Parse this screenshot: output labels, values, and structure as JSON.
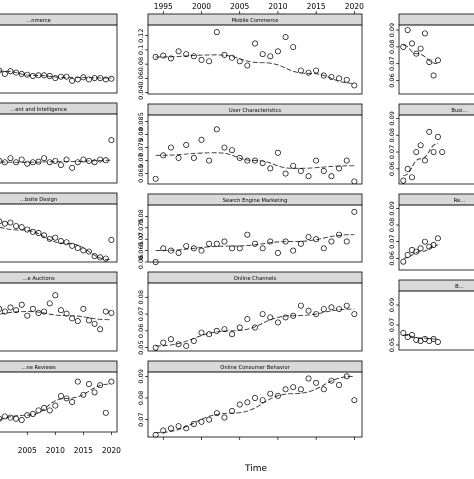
{
  "figure": {
    "xlabel": "Time"
  },
  "chart_data": {
    "type": "scatter",
    "xlabel": "Time",
    "xlim": [
      1993,
      2021
    ],
    "x_ticks": [
      1995,
      2000,
      2005,
      2010,
      2015,
      2020
    ],
    "years": [
      1994,
      1995,
      1996,
      1997,
      1998,
      1999,
      2000,
      2001,
      2002,
      2003,
      2004,
      2005,
      2006,
      2007,
      2008,
      2009,
      2010,
      2011,
      2012,
      2013,
      2014,
      2015,
      2016,
      2017,
      2018,
      2019,
      2020
    ],
    "columns": [
      {
        "panels": [
          {
            "title": "…nmerce",
            "ylim": [
              0,
              1
            ],
            "y_ticks": [],
            "values": [
              0.5,
              0.48,
              0.44,
              0.4,
              0.38,
              0.36,
              0.33,
              0.28,
              0.32,
              0.3,
              0.28,
              0.27,
              0.25,
              0.26,
              0.26,
              0.25,
              0.22,
              0.24,
              0.24,
              0.18,
              0.2,
              0.23,
              0.2,
              0.22,
              0.22,
              0.2,
              0.21
            ],
            "trend": [
              [
                1994,
                0.48
              ],
              [
                2001,
                0.32
              ],
              [
                2006,
                0.26
              ],
              [
                2012,
                0.23
              ],
              [
                2020,
                0.22
              ]
            ]
          },
          {
            "title": "…ent and Intelligence",
            "ylim": [
              0,
              1
            ],
            "y_ticks": [],
            "values": [
              0.3,
              0.32,
              0.3,
              0.32,
              0.28,
              0.3,
              0.32,
              0.3,
              0.36,
              0.3,
              0.34,
              0.28,
              0.3,
              0.31,
              0.36,
              0.3,
              0.32,
              0.26,
              0.34,
              0.22,
              0.3,
              0.34,
              0.32,
              0.3,
              0.34,
              0.33,
              0.62
            ],
            "trend": [
              [
                1994,
                0.32
              ],
              [
                2004,
                0.3
              ],
              [
                2012,
                0.31
              ],
              [
                2020,
                0.33
              ]
            ]
          },
          {
            "title": "…bsite Design",
            "ylim": [
              0,
              1
            ],
            "y_ticks": [],
            "values": [
              0.85,
              0.82,
              0.8,
              0.76,
              0.74,
              0.72,
              0.7,
              0.66,
              0.68,
              0.62,
              0.6,
              0.56,
              0.52,
              0.5,
              0.46,
              0.4,
              0.42,
              0.36,
              0.34,
              0.28,
              0.24,
              0.2,
              0.18,
              0.1,
              0.08,
              0.06,
              0.38
            ],
            "trend": [
              [
                1994,
                0.72
              ],
              [
                2004,
                0.55
              ],
              [
                2012,
                0.32
              ],
              [
                2020,
                0.04
              ]
            ]
          },
          {
            "title": "…e Auctions",
            "ylim": [
              0,
              1
            ],
            "y_ticks": [],
            "values": [
              0.4,
              0.44,
              0.48,
              0.52,
              0.56,
              0.6,
              0.62,
              0.58,
              0.64,
              0.6,
              0.68,
              0.52,
              0.62,
              0.56,
              0.58,
              0.7,
              0.82,
              0.6,
              0.55,
              0.48,
              0.44,
              0.62,
              0.45,
              0.4,
              0.32,
              0.58,
              0.56
            ],
            "trend": [
              [
                1994,
                0.48
              ],
              [
                2005,
                0.58
              ],
              [
                2012,
                0.52
              ],
              [
                2020,
                0.46
              ]
            ]
          },
          {
            "title": "…ne Reviews",
            "ylim": [
              0,
              1
            ],
            "y_ticks": [],
            "values": [
              0.06,
              0.08,
              0.1,
              0.12,
              0.14,
              0.18,
              0.22,
              0.26,
              0.24,
              0.22,
              0.2,
              0.28,
              0.3,
              0.36,
              0.4,
              0.36,
              0.44,
              0.6,
              0.56,
              0.5,
              0.84,
              0.62,
              0.8,
              0.66,
              0.78,
              0.32,
              0.84
            ],
            "trend": [
              [
                1994,
                0.08
              ],
              [
                2005,
                0.28
              ],
              [
                2012,
                0.56
              ],
              [
                2020,
                0.8
              ]
            ]
          }
        ]
      },
      {
        "panels": [
          {
            "title": "Mobile Commerce",
            "ylim": [
              0.038,
              0.135
            ],
            "y_ticks": [
              0.04,
              0.06,
              0.08,
              0.1,
              0.12
            ],
            "values": [
              0.09,
              0.092,
              0.088,
              0.098,
              0.094,
              0.091,
              0.086,
              0.084,
              0.125,
              0.093,
              0.089,
              0.084,
              0.078,
              0.109,
              0.094,
              0.091,
              0.098,
              0.118,
              0.104,
              0.071,
              0.068,
              0.071,
              0.064,
              0.062,
              0.06,
              0.058,
              0.05
            ],
            "trend": [
              [
                1994,
                0.09
              ],
              [
                2002,
                0.093
              ],
              [
                2008,
                0.082
              ],
              [
                2014,
                0.067
              ],
              [
                2020,
                0.053
              ]
            ]
          },
          {
            "title": "User Characteristics",
            "ylim": [
              0.061,
              0.0875
            ],
            "y_ticks": [
              0.065,
              0.07,
              0.075,
              0.08,
              0.085
            ],
            "values": [
              0.063,
              0.072,
              0.075,
              0.071,
              0.076,
              0.071,
              0.078,
              0.07,
              0.082,
              0.075,
              0.074,
              0.071,
              0.07,
              0.07,
              0.069,
              0.067,
              0.073,
              0.065,
              0.068,
              0.066,
              0.064,
              0.07,
              0.066,
              0.064,
              0.067,
              0.07,
              0.062
            ],
            "trend": [
              [
                1994,
                0.072
              ],
              [
                2002,
                0.073
              ],
              [
                2007,
                0.07
              ],
              [
                2012,
                0.067
              ],
              [
                2020,
                0.068
              ]
            ]
          },
          {
            "title": "Search Engine Marketing",
            "ylim": [
              0.06,
              0.085
            ],
            "y_ticks": [
              0.06,
              0.065,
              0.07,
              0.075,
              0.08
            ],
            "values": [
              0.06,
              0.066,
              0.065,
              0.064,
              0.067,
              0.066,
              0.065,
              0.068,
              0.068,
              0.069,
              0.066,
              0.066,
              0.072,
              0.068,
              0.066,
              0.069,
              0.064,
              0.069,
              0.065,
              0.068,
              0.071,
              0.07,
              0.066,
              0.069,
              0.072,
              0.069,
              0.082
            ],
            "trend": [
              [
                1994,
                0.065
              ],
              [
                2004,
                0.067
              ],
              [
                2012,
                0.069
              ],
              [
                2020,
                0.072
              ]
            ]
          },
          {
            "title": "Online Channels",
            "ylim": [
              0.048,
              0.0885
            ],
            "y_ticks": [
              0.05,
              0.06,
              0.07,
              0.08
            ],
            "values": [
              0.05,
              0.053,
              0.055,
              0.052,
              0.051,
              0.054,
              0.059,
              0.058,
              0.06,
              0.061,
              0.058,
              0.062,
              0.067,
              0.062,
              0.07,
              0.068,
              0.065,
              0.068,
              0.069,
              0.075,
              0.072,
              0.07,
              0.073,
              0.074,
              0.073,
              0.075,
              0.07
            ],
            "trend": [
              [
                1994,
                0.051
              ],
              [
                2004,
                0.06
              ],
              [
                2012,
                0.069
              ],
              [
                2020,
                0.073
              ]
            ]
          },
          {
            "title": "Online Consumer Behavior",
            "ylim": [
              0.062,
              0.092
            ],
            "y_ticks": [
              0.07,
              0.08,
              0.09
            ],
            "values": [
              0.063,
              0.065,
              0.066,
              0.067,
              0.066,
              0.068,
              0.069,
              0.07,
              0.073,
              0.071,
              0.074,
              0.077,
              0.078,
              0.08,
              0.079,
              0.082,
              0.081,
              0.084,
              0.085,
              0.084,
              0.089,
              0.087,
              0.084,
              0.088,
              0.086,
              0.09,
              0.079
            ],
            "trend": [
              [
                1994,
                0.064
              ],
              [
                2004,
                0.073
              ],
              [
                2012,
                0.082
              ],
              [
                2020,
                0.09
              ]
            ]
          }
        ]
      },
      {
        "panels": [
          {
            "title": "",
            "ylim": [
              0.052,
              0.093
            ],
            "y_ticks": [
              0.06,
              0.07,
              0.08,
              0.09
            ],
            "values": [
              0.08,
              0.09,
              0.082,
              0.076,
              0.079,
              0.088,
              0.071,
              0.063,
              0.072
            ],
            "trend": [
              [
                1994,
                0.081
              ],
              [
                1997,
                0.076
              ],
              [
                2002,
                0.07
              ]
            ]
          },
          {
            "title": "Busi…",
            "ylim": [
              0.051,
              0.092
            ],
            "y_ticks": [
              0.06,
              0.07,
              0.08,
              0.09
            ],
            "values": [
              0.053,
              0.06,
              0.055,
              0.07,
              0.074,
              0.065,
              0.082,
              0.07,
              0.079,
              0.07
            ],
            "trend": [
              [
                1994,
                0.056
              ],
              [
                1998,
                0.066
              ],
              [
                2002,
                0.075
              ]
            ]
          },
          {
            "title": "Re…",
            "ylim": [
              0.053,
              0.092
            ],
            "y_ticks": [
              0.06,
              0.07,
              0.08,
              0.09
            ],
            "values": [
              0.058,
              0.062,
              0.065,
              0.064,
              0.066,
              0.07,
              0.067,
              0.068,
              0.072
            ],
            "trend": [
              [
                1994,
                0.06
              ],
              [
                1998,
                0.064
              ],
              [
                2002,
                0.068
              ]
            ]
          },
          {
            "title": "B…",
            "ylim": [
              0.045,
              0.104
            ],
            "y_ticks": [
              0.05,
              0.07,
              0.09
            ],
            "values": [
              0.062,
              0.058,
              0.06,
              0.055,
              0.054,
              0.056,
              0.054,
              0.056,
              0.053
            ],
            "trend": [
              [
                1994,
                0.06
              ],
              [
                1998,
                0.057
              ],
              [
                2002,
                0.056
              ]
            ]
          }
        ]
      }
    ]
  }
}
